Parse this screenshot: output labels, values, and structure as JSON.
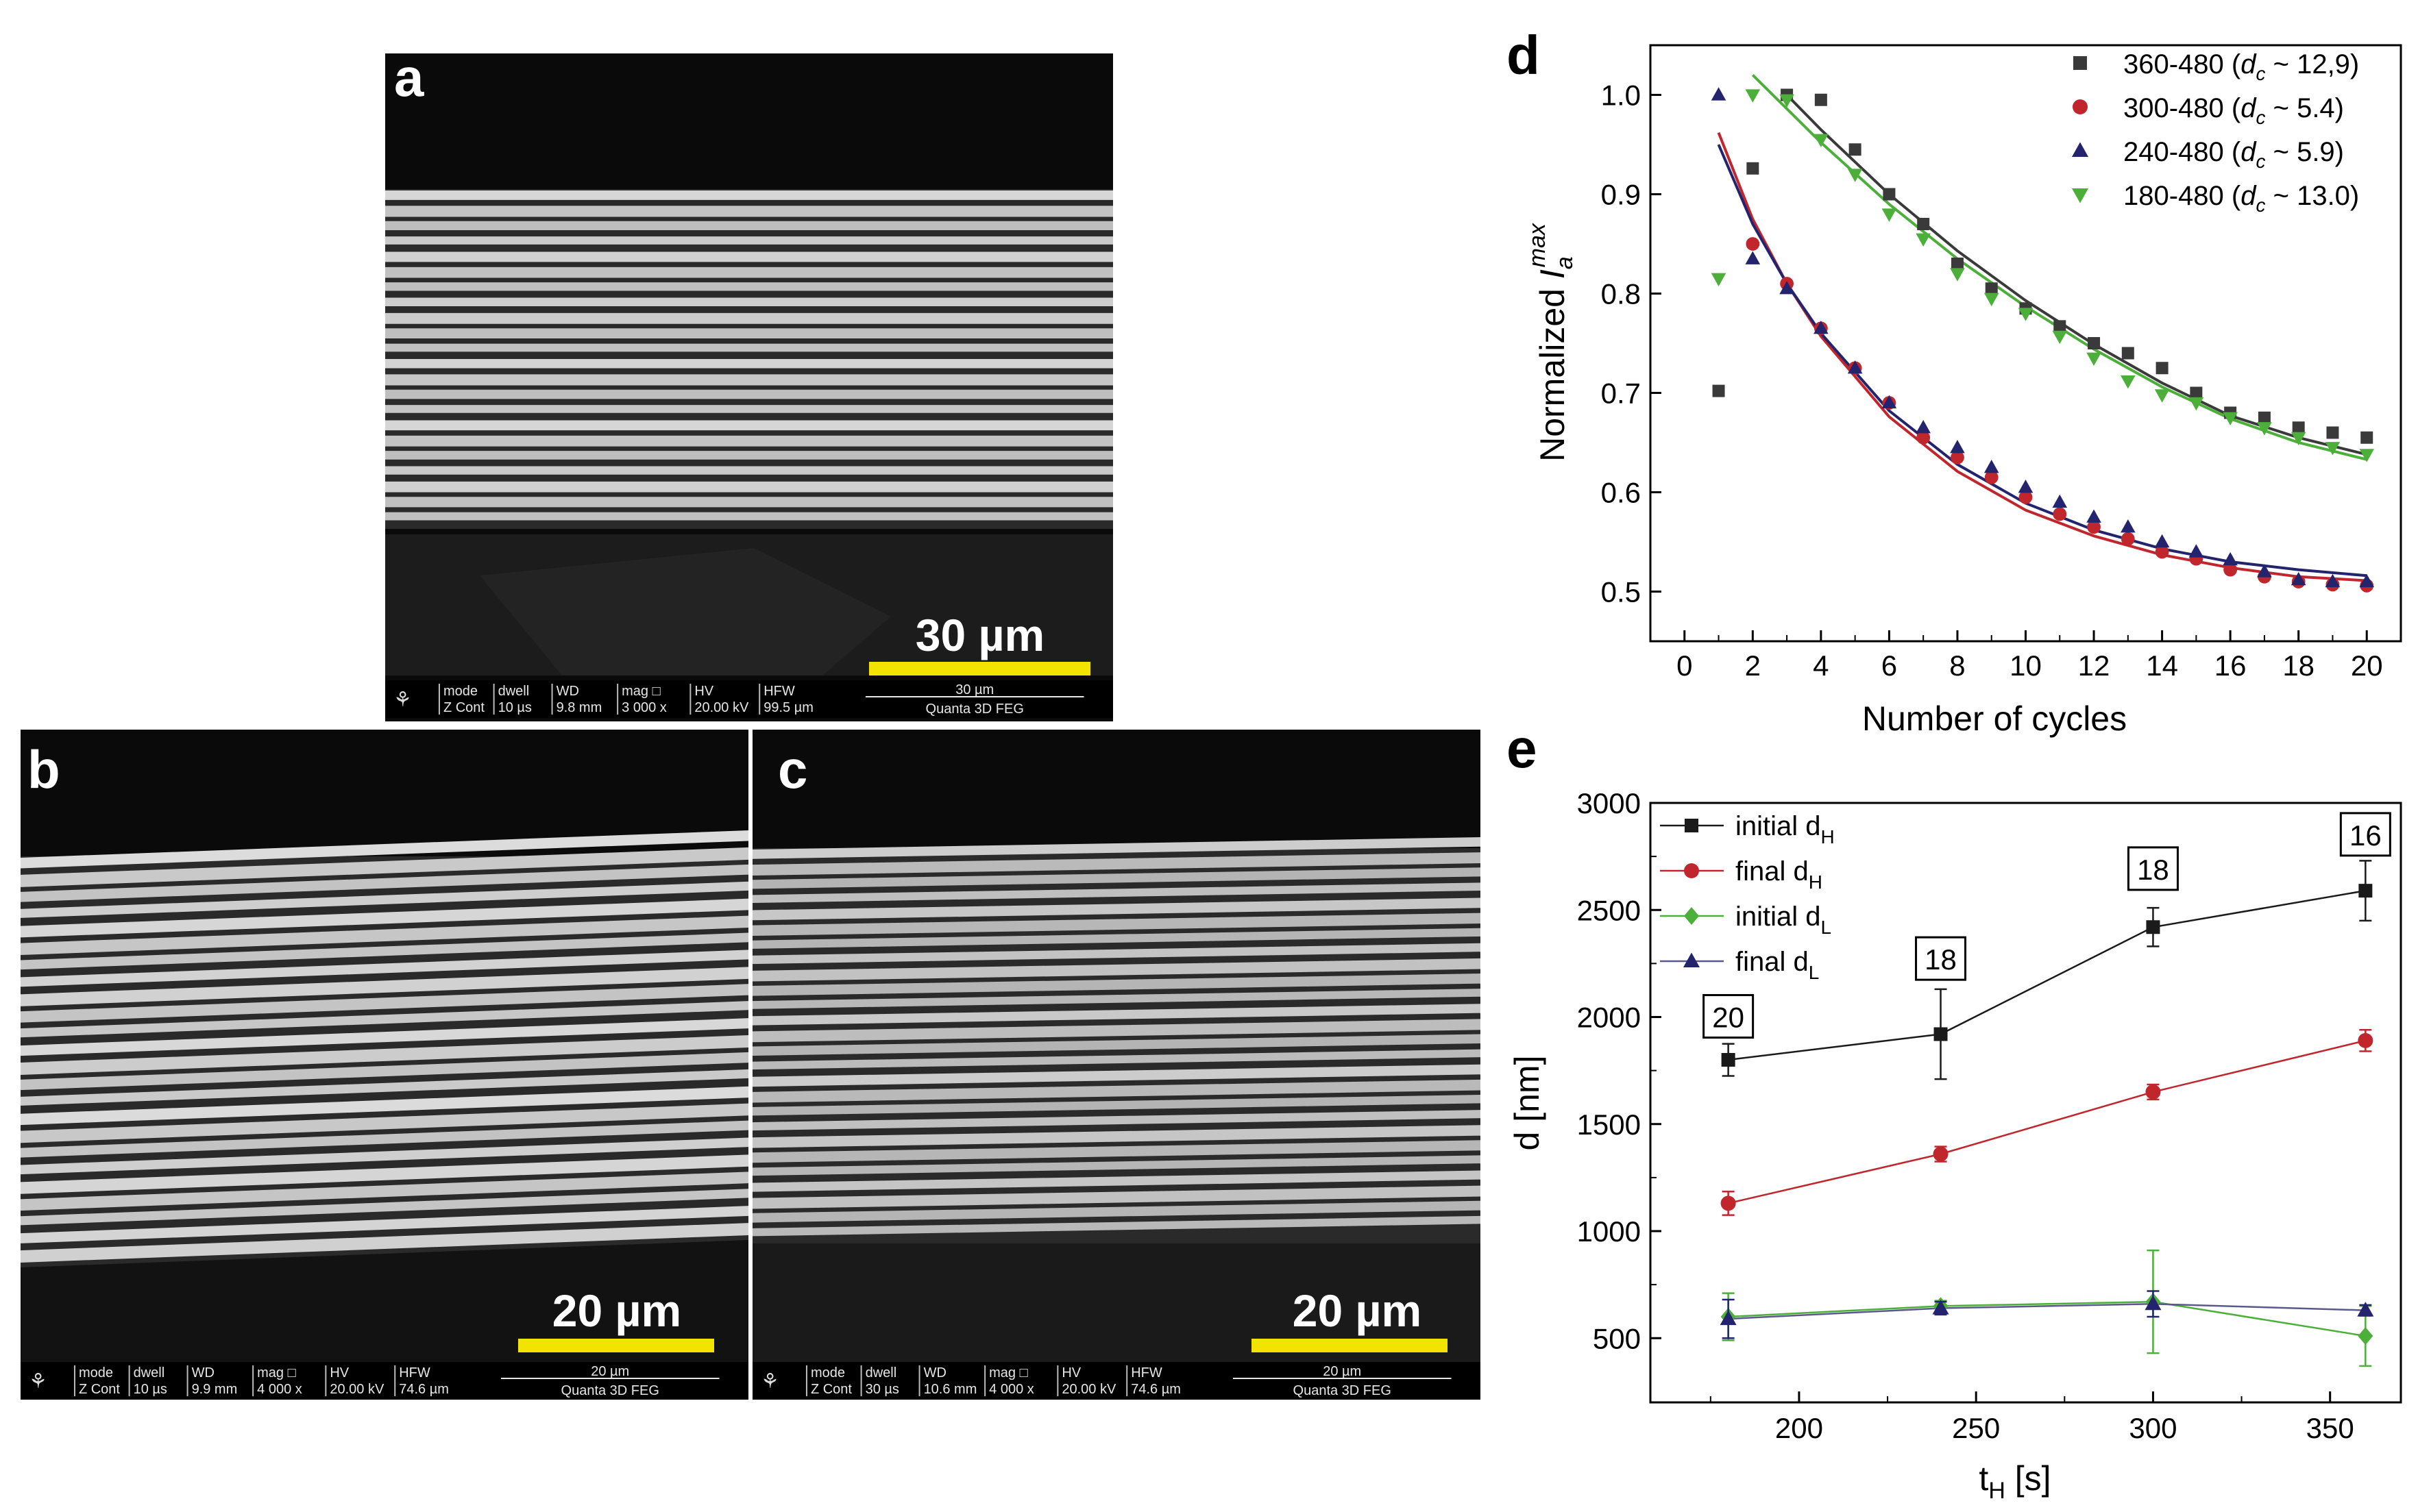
{
  "panels": {
    "a": {
      "letter": "a",
      "scale_label": "30 µm",
      "info": {
        "col1": [
          "mode",
          "Z Cont"
        ],
        "col2": [
          "dwell",
          "10 µs"
        ],
        "col3": [
          "WD",
          "9.8 mm"
        ],
        "col4": [
          "mag □",
          "3 000 x"
        ],
        "col5": [
          "HV",
          "20.00 kV"
        ],
        "col6": [
          "HFW",
          "99.5 µm"
        ],
        "bar": "30 µm",
        "instrument": "Quanta 3D FEG"
      }
    },
    "b": {
      "letter": "b",
      "scale_label": "20 µm",
      "info": {
        "col1": [
          "mode",
          "Z Cont"
        ],
        "col2": [
          "dwell",
          "10 µs"
        ],
        "col3": [
          "WD",
          "9.9 mm"
        ],
        "col4": [
          "mag □",
          "4 000 x"
        ],
        "col5": [
          "HV",
          "20.00 kV"
        ],
        "col6": [
          "HFW",
          "74.6 µm"
        ],
        "bar": "20 µm",
        "instrument": "Quanta 3D FEG"
      }
    },
    "c": {
      "letter": "c",
      "scale_label": "20 µm",
      "info": {
        "col1": [
          "mode",
          "Z Cont"
        ],
        "col2": [
          "dwell",
          "30 µs"
        ],
        "col3": [
          "WD",
          "10.6 mm"
        ],
        "col4": [
          "mag □",
          "4 000 x"
        ],
        "col5": [
          "HV",
          "20.00 kV"
        ],
        "col6": [
          "HFW",
          "74.6 µm"
        ],
        "bar": "20 µm",
        "instrument": "Quanta 3D FEG"
      }
    }
  },
  "colors": {
    "black_series": "#3a3a3a",
    "red_series": "#c0262c",
    "navy_series": "#23236e",
    "green_series": "#4caf3a",
    "scale_bar": "#f2e400"
  },
  "chart_data": [
    {
      "panel": "d",
      "type": "scatter",
      "title": "",
      "xlabel": "Number of cycles",
      "ylabel": "Normalized I_a^max",
      "ylabel_parts": {
        "prefix": "Normalized ",
        "main": "I",
        "sub": "a",
        "sup": "max"
      },
      "xlim": [
        -1,
        21
      ],
      "ylim": [
        0.45,
        1.05
      ],
      "xticks": [
        0,
        2,
        4,
        6,
        8,
        10,
        12,
        14,
        16,
        18,
        20
      ],
      "yticks": [
        0.5,
        0.6,
        0.7,
        0.8,
        0.9,
        1.0
      ],
      "ytick_labels": [
        "0.5",
        "0.6",
        "0.7",
        "0.8",
        "0.9",
        "1.0"
      ],
      "legend_position": "top-right",
      "series": [
        {
          "name": "360-480 (d_c ~ 12,9)",
          "label_main": "360-480 (",
          "label_dc": "d",
          "label_sub": "c",
          "label_tail": " ~ 12,9)",
          "marker": "square",
          "color": "#3a3a3a",
          "x": [
            1,
            2,
            3,
            4,
            5,
            6,
            7,
            8,
            9,
            10,
            11,
            12,
            13,
            14,
            15,
            16,
            17,
            18,
            19,
            20
          ],
          "y": [
            0.702,
            0.926,
            1.0,
            0.995,
            0.945,
            0.9,
            0.87,
            0.83,
            0.805,
            0.785,
            0.767,
            0.75,
            0.74,
            0.725,
            0.7,
            0.68,
            0.675,
            0.665,
            0.66,
            0.655
          ],
          "fit": {
            "x": [
              3,
              4,
              6,
              8,
              10,
              12,
              14,
              16,
              18,
              20
            ],
            "y": [
              1.0,
              0.965,
              0.9,
              0.843,
              0.793,
              0.749,
              0.71,
              0.677,
              0.655,
              0.638
            ]
          }
        },
        {
          "name": "300-480 (d_c ~ 5.4)",
          "label_main": "300-480 (",
          "label_dc": "d",
          "label_sub": "c",
          "label_tail": " ~ 5.4)",
          "marker": "circle",
          "color": "#c0262c",
          "x": [
            2,
            3,
            4,
            5,
            6,
            7,
            8,
            9,
            10,
            11,
            12,
            13,
            14,
            15,
            16,
            17,
            18,
            19,
            20
          ],
          "y": [
            0.85,
            0.81,
            0.765,
            0.725,
            0.69,
            0.655,
            0.635,
            0.615,
            0.595,
            0.578,
            0.565,
            0.553,
            0.54,
            0.533,
            0.522,
            0.515,
            0.51,
            0.507,
            0.506
          ],
          "fit": {
            "x": [
              1,
              2,
              3,
              4,
              6,
              8,
              10,
              12,
              14,
              16,
              18,
              20
            ],
            "y": [
              0.962,
              0.875,
              0.81,
              0.757,
              0.676,
              0.621,
              0.582,
              0.556,
              0.537,
              0.524,
              0.515,
              0.511
            ]
          }
        },
        {
          "name": "240-480 (d_c ~ 5.9)",
          "label_main": "240-480 (",
          "label_dc": "d",
          "label_sub": "c",
          "label_tail": " ~ 5.9)",
          "marker": "triangle",
          "color": "#23236e",
          "x": [
            1,
            2,
            3,
            4,
            5,
            6,
            7,
            8,
            9,
            10,
            11,
            12,
            13,
            14,
            15,
            16,
            17,
            18,
            19,
            20
          ],
          "y": [
            1.0,
            0.835,
            0.805,
            0.765,
            0.725,
            0.69,
            0.665,
            0.645,
            0.625,
            0.605,
            0.59,
            0.575,
            0.565,
            0.55,
            0.54,
            0.532,
            0.52,
            0.512,
            0.51,
            0.51
          ],
          "fit": {
            "x": [
              1,
              2,
              3,
              4,
              6,
              8,
              10,
              12,
              14,
              16,
              18,
              20
            ],
            "y": [
              0.95,
              0.87,
              0.81,
              0.76,
              0.682,
              0.628,
              0.589,
              0.562,
              0.543,
              0.53,
              0.522,
              0.516
            ]
          }
        },
        {
          "name": "180-480 (d_c ~ 13.0)",
          "label_main": "180-480 (",
          "label_dc": "d",
          "label_sub": "c",
          "label_tail": " ~ 13.0)",
          "marker": "triangle-down",
          "color": "#4caf3a",
          "x": [
            1,
            2,
            3,
            4,
            5,
            6,
            7,
            8,
            9,
            10,
            11,
            12,
            13,
            14,
            15,
            16,
            17,
            18,
            19,
            20
          ],
          "y": [
            0.815,
            1.0,
            0.995,
            0.955,
            0.92,
            0.88,
            0.855,
            0.82,
            0.795,
            0.78,
            0.757,
            0.735,
            0.712,
            0.698,
            0.69,
            0.675,
            0.665,
            0.655,
            0.645,
            0.638
          ],
          "fit": {
            "x": [
              2,
              4,
              6,
              8,
              10,
              12,
              14,
              16,
              18,
              20
            ],
            "y": [
              1.02,
              0.952,
              0.89,
              0.835,
              0.787,
              0.744,
              0.706,
              0.674,
              0.65,
              0.633
            ]
          }
        }
      ]
    },
    {
      "panel": "e",
      "type": "line",
      "title": "",
      "xlabel": "t_H [s]",
      "xlabel_parts": {
        "main": "t",
        "sub": "H",
        "tail": " [s]"
      },
      "ylabel": "d [nm]",
      "xlim": [
        158,
        370
      ],
      "ylim": [
        200,
        3000
      ],
      "xticks": [
        200,
        250,
        300,
        350
      ],
      "yticks": [
        500,
        1000,
        1500,
        2000,
        2500,
        3000
      ],
      "legend_position": "top-left",
      "series": [
        {
          "name": "initial d_H",
          "label_main": "initial d",
          "label_sub": "H",
          "marker": "square",
          "color": "#1a1a1a",
          "line_color": "#1a1a1a",
          "x": [
            180,
            240,
            300,
            360
          ],
          "y": [
            1800,
            1920,
            2420,
            2590
          ],
          "err": [
            75,
            210,
            90,
            140
          ]
        },
        {
          "name": "final d_H",
          "label_main": "final d",
          "label_sub": "H",
          "marker": "circle",
          "color": "#c0262c",
          "line_color": "#c0262c",
          "x": [
            180,
            240,
            300,
            360
          ],
          "y": [
            1130,
            1360,
            1650,
            1890
          ],
          "err": [
            55,
            35,
            35,
            50
          ]
        },
        {
          "name": "initial d_L",
          "label_main": "initial d",
          "label_sub": "L",
          "marker": "diamond",
          "color": "#4caf3a",
          "line_color": "#4caf3a",
          "x": [
            180,
            240,
            300,
            360
          ],
          "y": [
            600,
            650,
            670,
            510
          ],
          "err": [
            110,
            25,
            240,
            140
          ]
        },
        {
          "name": "final d_L",
          "label_main": "final d",
          "label_sub": "L",
          "marker": "triangle",
          "color": "#23236e",
          "line_color": "#5a5a8a",
          "x": [
            180,
            240,
            300,
            360
          ],
          "y": [
            590,
            640,
            660,
            630
          ],
          "err": [
            90,
            30,
            60,
            25
          ]
        }
      ],
      "annotations": [
        {
          "text": "20",
          "x": 180,
          "y": 2000
        },
        {
          "text": "18",
          "x": 240,
          "y": 2270
        },
        {
          "text": "18",
          "x": 300,
          "y": 2690
        },
        {
          "text": "16",
          "x": 360,
          "y": 2850
        }
      ]
    }
  ]
}
